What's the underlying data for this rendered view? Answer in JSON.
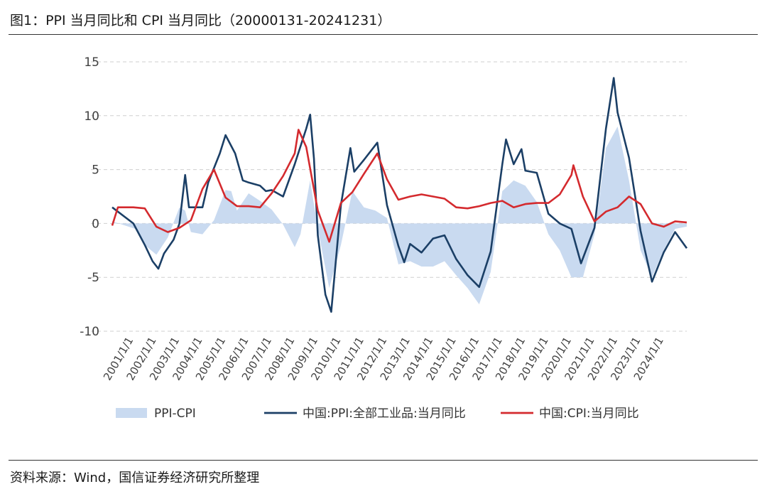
{
  "header": {
    "title": "图1：PPI 当月同比和 CPI 当月同比（20000131-20241231）"
  },
  "footer": {
    "source": "资料来源：Wind，国信证券经济研究所整理"
  },
  "chart_data": {
    "type": "line",
    "title": "图1：PPI 当月同比和 CPI 当月同比（20000131-20241231）",
    "ylim": [
      -10,
      15
    ],
    "yticks": [
      15,
      10,
      5,
      0,
      -5,
      -10
    ],
    "xtick_labels": [
      "2001/1/1",
      "2002/1/1",
      "2003/1/1",
      "2004/1/1",
      "2005/1/1",
      "2006/1/1",
      "2007/1/1",
      "2008/1/1",
      "2009/1/1",
      "2010/1/1",
      "2011/1/1",
      "2012/1/1",
      "2013/1/1",
      "2014/1/1",
      "2015/1/1",
      "2016/1/1",
      "2017/1/1",
      "2018/1/1",
      "2019/1/1",
      "2020/1/1",
      "2021/1/1",
      "2022/1/1",
      "2023/1/1",
      "2024/1/1"
    ],
    "grid": "horizontal dashed",
    "legend_position": "bottom",
    "series": [
      {
        "name": "PPI-CPI",
        "kind": "area",
        "color": "#c9daf0",
        "points": [
          [
            "2000-01-31",
            0.2
          ],
          [
            "2001-01-31",
            -0.5
          ],
          [
            "2001-06-30",
            -2.0
          ],
          [
            "2001-12-31",
            -2.9
          ],
          [
            "2002-06-30",
            -1.3
          ],
          [
            "2002-12-31",
            1.5
          ],
          [
            "2003-03-31",
            1.2
          ],
          [
            "2003-06-30",
            -0.8
          ],
          [
            "2003-12-31",
            -1.0
          ],
          [
            "2004-06-30",
            0.3
          ],
          [
            "2004-12-31",
            3.1
          ],
          [
            "2005-03-31",
            3.0
          ],
          [
            "2005-06-30",
            1.2
          ],
          [
            "2005-12-31",
            2.8
          ],
          [
            "2006-06-30",
            2.1
          ],
          [
            "2006-12-31",
            1.3
          ],
          [
            "2007-06-30",
            -0.1
          ],
          [
            "2007-12-31",
            -2.2
          ],
          [
            "2008-03-31",
            -1.0
          ],
          [
            "2008-08-31",
            4.0
          ],
          [
            "2008-12-31",
            -0.5
          ],
          [
            "2009-06-30",
            -6.0
          ],
          [
            "2009-12-31",
            -2.0
          ],
          [
            "2010-06-30",
            3.0
          ],
          [
            "2010-12-31",
            1.5
          ],
          [
            "2011-06-30",
            1.2
          ],
          [
            "2011-12-31",
            0.5
          ],
          [
            "2012-06-30",
            -3.8
          ],
          [
            "2012-12-31",
            -3.5
          ],
          [
            "2013-06-30",
            -4.0
          ],
          [
            "2013-12-31",
            -4.0
          ],
          [
            "2014-06-30",
            -3.5
          ],
          [
            "2014-12-31",
            -4.8
          ],
          [
            "2015-06-30",
            -6.0
          ],
          [
            "2015-12-31",
            -7.5
          ],
          [
            "2016-06-30",
            -4.5
          ],
          [
            "2016-12-31",
            3.0
          ],
          [
            "2017-06-30",
            4.0
          ],
          [
            "2017-12-31",
            3.5
          ],
          [
            "2018-06-30",
            2.0
          ],
          [
            "2018-12-31",
            -1.0
          ],
          [
            "2019-06-30",
            -2.5
          ],
          [
            "2019-12-31",
            -5.0
          ],
          [
            "2020-06-30",
            -5.0
          ],
          [
            "2020-12-31",
            -1.0
          ],
          [
            "2021-06-30",
            7.0
          ],
          [
            "2021-12-31",
            9.0
          ],
          [
            "2022-06-30",
            4.0
          ],
          [
            "2022-12-31",
            -2.5
          ],
          [
            "2023-06-30",
            -5.0
          ],
          [
            "2023-12-31",
            -2.5
          ],
          [
            "2024-06-30",
            -0.5
          ],
          [
            "2024-12-31",
            -0.3
          ]
        ]
      },
      {
        "name": "中国:PPI:全部工业品:当月同比",
        "kind": "line",
        "color": "#1b3f66",
        "points": [
          [
            "2000-01-31",
            1.5
          ],
          [
            "2000-12-31",
            0.0
          ],
          [
            "2001-06-30",
            -2.0
          ],
          [
            "2001-10-31",
            -3.5
          ],
          [
            "2002-01-31",
            -4.2
          ],
          [
            "2002-04-30",
            -2.8
          ],
          [
            "2002-09-30",
            -1.5
          ],
          [
            "2002-12-31",
            0.0
          ],
          [
            "2003-03-31",
            4.5
          ],
          [
            "2003-05-31",
            1.5
          ],
          [
            "2003-12-31",
            1.5
          ],
          [
            "2004-03-31",
            3.8
          ],
          [
            "2004-09-30",
            6.5
          ],
          [
            "2004-12-31",
            8.2
          ],
          [
            "2005-05-31",
            6.5
          ],
          [
            "2005-09-30",
            4.0
          ],
          [
            "2005-12-31",
            3.8
          ],
          [
            "2006-06-30",
            3.5
          ],
          [
            "2006-09-30",
            3.0
          ],
          [
            "2006-12-31",
            3.1
          ],
          [
            "2007-06-30",
            2.5
          ],
          [
            "2007-12-31",
            5.5
          ],
          [
            "2008-06-30",
            8.8
          ],
          [
            "2008-08-31",
            10.1
          ],
          [
            "2008-10-31",
            6.0
          ],
          [
            "2008-12-31",
            -1.1
          ],
          [
            "2009-04-30",
            -6.6
          ],
          [
            "2009-07-31",
            -8.2
          ],
          [
            "2009-12-31",
            1.7
          ],
          [
            "2010-05-31",
            7.0
          ],
          [
            "2010-07-31",
            4.8
          ],
          [
            "2010-12-31",
            5.9
          ],
          [
            "2011-07-31",
            7.5
          ],
          [
            "2011-12-31",
            1.7
          ],
          [
            "2012-06-30",
            -2.1
          ],
          [
            "2012-09-30",
            -3.6
          ],
          [
            "2012-12-31",
            -1.9
          ],
          [
            "2013-06-30",
            -2.7
          ],
          [
            "2013-12-31",
            -1.4
          ],
          [
            "2014-06-30",
            -1.1
          ],
          [
            "2014-12-31",
            -3.3
          ],
          [
            "2015-06-30",
            -4.8
          ],
          [
            "2015-12-31",
            -5.9
          ],
          [
            "2016-06-30",
            -2.6
          ],
          [
            "2016-12-31",
            5.5
          ],
          [
            "2017-02-28",
            7.8
          ],
          [
            "2017-06-30",
            5.5
          ],
          [
            "2017-10-31",
            6.9
          ],
          [
            "2017-12-31",
            4.9
          ],
          [
            "2018-06-30",
            4.7
          ],
          [
            "2018-12-31",
            0.9
          ],
          [
            "2019-06-30",
            0.0
          ],
          [
            "2019-12-31",
            -0.5
          ],
          [
            "2020-05-31",
            -3.7
          ],
          [
            "2020-12-31",
            -0.4
          ],
          [
            "2021-06-30",
            8.8
          ],
          [
            "2021-10-31",
            13.5
          ],
          [
            "2021-12-31",
            10.3
          ],
          [
            "2022-06-30",
            6.1
          ],
          [
            "2022-12-31",
            -0.7
          ],
          [
            "2023-06-30",
            -5.4
          ],
          [
            "2023-12-31",
            -2.7
          ],
          [
            "2024-06-30",
            -0.8
          ],
          [
            "2024-12-31",
            -2.3
          ]
        ]
      },
      {
        "name": "中国:CPI:当月同比",
        "kind": "line",
        "color": "#d42a2e",
        "points": [
          [
            "2000-01-31",
            -0.2
          ],
          [
            "2000-04-30",
            1.5
          ],
          [
            "2000-12-31",
            1.5
          ],
          [
            "2001-06-30",
            1.4
          ],
          [
            "2001-12-31",
            -0.3
          ],
          [
            "2002-06-30",
            -0.8
          ],
          [
            "2002-12-31",
            -0.4
          ],
          [
            "2003-06-30",
            0.3
          ],
          [
            "2003-12-31",
            3.2
          ],
          [
            "2004-06-30",
            5.0
          ],
          [
            "2004-12-31",
            2.4
          ],
          [
            "2005-06-30",
            1.6
          ],
          [
            "2005-12-31",
            1.6
          ],
          [
            "2006-06-30",
            1.5
          ],
          [
            "2006-12-31",
            2.8
          ],
          [
            "2007-06-30",
            4.4
          ],
          [
            "2007-12-31",
            6.5
          ],
          [
            "2008-02-29",
            8.7
          ],
          [
            "2008-06-30",
            7.1
          ],
          [
            "2008-12-31",
            1.2
          ],
          [
            "2009-06-30",
            -1.7
          ],
          [
            "2009-12-31",
            1.9
          ],
          [
            "2010-06-30",
            2.9
          ],
          [
            "2010-12-31",
            4.6
          ],
          [
            "2011-07-31",
            6.5
          ],
          [
            "2011-12-31",
            4.1
          ],
          [
            "2012-06-30",
            2.2
          ],
          [
            "2012-12-31",
            2.5
          ],
          [
            "2013-06-30",
            2.7
          ],
          [
            "2013-12-31",
            2.5
          ],
          [
            "2014-06-30",
            2.3
          ],
          [
            "2014-12-31",
            1.5
          ],
          [
            "2015-06-30",
            1.4
          ],
          [
            "2015-12-31",
            1.6
          ],
          [
            "2016-06-30",
            1.9
          ],
          [
            "2016-12-31",
            2.1
          ],
          [
            "2017-06-30",
            1.5
          ],
          [
            "2017-12-31",
            1.8
          ],
          [
            "2018-06-30",
            1.9
          ],
          [
            "2018-12-31",
            1.9
          ],
          [
            "2019-06-30",
            2.7
          ],
          [
            "2019-12-31",
            4.5
          ],
          [
            "2020-01-31",
            5.4
          ],
          [
            "2020-06-30",
            2.5
          ],
          [
            "2020-12-31",
            0.2
          ],
          [
            "2021-06-30",
            1.1
          ],
          [
            "2021-12-31",
            1.5
          ],
          [
            "2022-06-30",
            2.5
          ],
          [
            "2022-12-31",
            1.8
          ],
          [
            "2023-06-30",
            0.0
          ],
          [
            "2023-12-31",
            -0.3
          ],
          [
            "2024-06-30",
            0.2
          ],
          [
            "2024-12-31",
            0.1
          ]
        ]
      }
    ]
  }
}
